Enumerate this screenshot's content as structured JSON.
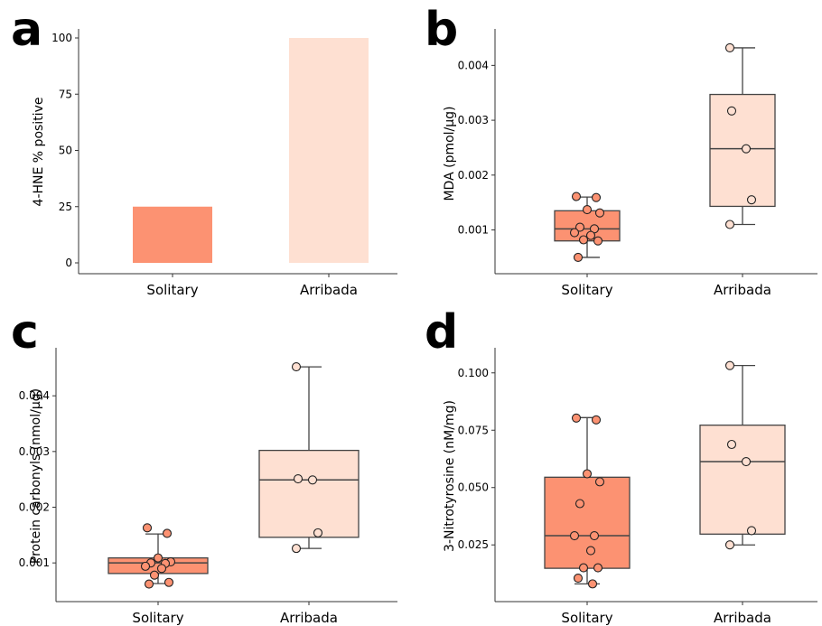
{
  "chart_data": [
    {
      "panel": "a",
      "type": "bar",
      "categories": [
        "Solitary",
        "Arribada"
      ],
      "values": [
        25,
        100
      ],
      "ylabel": "4-HNE  % positive",
      "ylim": [
        0,
        100
      ],
      "yticks": [
        "0",
        "25",
        "50",
        "75",
        "100"
      ],
      "colors": [
        "#fc9272",
        "#fee0d2"
      ]
    },
    {
      "panel": "b",
      "type": "box",
      "categories": [
        "Solitary",
        "Arribada"
      ],
      "ylabel": "MDA (pmol/µg)",
      "ylim": [
        0.0004,
        0.0045
      ],
      "yticks": [
        "0.001",
        "0.002",
        "0.003",
        "0.004"
      ],
      "colors": [
        "#fc9272",
        "#fee0d2"
      ],
      "boxes": [
        {
          "q1": 0.0008,
          "median": 0.00102,
          "q3": 0.00135,
          "whisker_low": 0.0005,
          "whisker_high": 0.0016
        },
        {
          "q1": 0.00143,
          "median": 0.00248,
          "q3": 0.00347,
          "whisker_low": 0.0011,
          "whisker_high": 0.00432
        }
      ],
      "points": [
        [
          0.00161,
          0.00159,
          0.00137,
          0.00131,
          0.00105,
          0.00102,
          0.00095,
          0.0009,
          0.00082,
          0.0008,
          0.0005
        ],
        [
          0.00432,
          0.00317,
          0.00248,
          0.00155,
          0.0011
        ]
      ]
    },
    {
      "panel": "c",
      "type": "box",
      "categories": [
        "Solitary",
        "Arribada"
      ],
      "ylabel": "Protein carbonyls (nmol/µg)",
      "ylim": [
        0.0005,
        0.0047
      ],
      "yticks": [
        "0.001",
        "0.002",
        "0.003",
        "0.004"
      ],
      "colors": [
        "#fc9272",
        "#fee0d2"
      ],
      "boxes": [
        {
          "q1": 0.00081,
          "median": 0.001,
          "q3": 0.00109,
          "whisker_low": 0.00063,
          "whisker_high": 0.00152
        },
        {
          "q1": 0.00146,
          "median": 0.00249,
          "q3": 0.00302,
          "whisker_low": 0.00126,
          "whisker_high": 0.00452
        }
      ],
      "points": [
        [
          0.00163,
          0.00153,
          0.00109,
          0.00102,
          0.001,
          0.00099,
          0.00094,
          0.0009,
          0.00078,
          0.00065,
          0.00062
        ],
        [
          0.00452,
          0.00251,
          0.00249,
          0.00154,
          0.00126
        ]
      ]
    },
    {
      "panel": "d",
      "type": "box",
      "categories": [
        "Solitary",
        "Arribada"
      ],
      "ylabel": "3-Nitrotyrosine (nM/mg)",
      "ylim": [
        0.005,
        0.107
      ],
      "yticks": [
        "0.025",
        "0.050",
        "0.075",
        "0.100"
      ],
      "colors": [
        "#fc9272",
        "#fee0d2"
      ],
      "boxes": [
        {
          "q1": 0.0148,
          "median": 0.029,
          "q3": 0.0545,
          "whisker_low": 0.008,
          "whisker_high": 0.0805
        },
        {
          "q1": 0.0297,
          "median": 0.0613,
          "q3": 0.0772,
          "whisker_low": 0.025,
          "whisker_high": 0.1032
        }
      ],
      "points": [
        [
          0.0803,
          0.0795,
          0.056,
          0.0525,
          0.043,
          0.029,
          0.029,
          0.0225,
          0.015,
          0.015,
          0.0105,
          0.008
        ],
        [
          0.1032,
          0.0688,
          0.0613,
          0.0312,
          0.025
        ]
      ]
    }
  ]
}
